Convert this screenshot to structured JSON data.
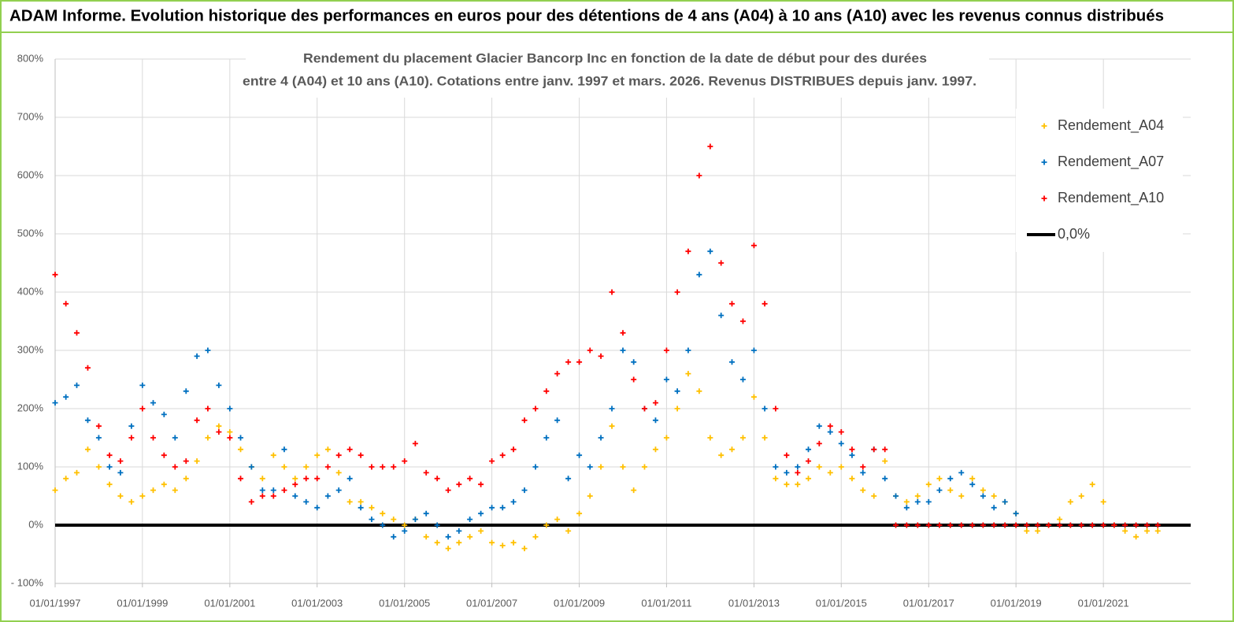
{
  "chart_data": {
    "type": "scatter",
    "header": "ADAM Informe. Evolution historique des performances en euros pour des détentions de 4 ans (A04) à 10 ans (A10) avec les revenus connus distribués",
    "title": [
      "Rendement du placement Glacier Bancorp Inc en fonction de la date de début pour des durées",
      "entre 4 (A04) et 10 ans (A10).  Cotations entre janv. 1997 et mars. 2026. Revenus DISTRIBUES depuis janv. 1997."
    ],
    "xlim": [
      "1997-01-01",
      "2023-01-01"
    ],
    "xticks": [
      {
        "value": "1997-01-01",
        "label": "01/01/1997"
      },
      {
        "value": "1999-01-01",
        "label": "01/01/1999"
      },
      {
        "value": "2001-01-01",
        "label": "01/01/2001"
      },
      {
        "value": "2003-01-01",
        "label": "01/01/2003"
      },
      {
        "value": "2005-01-01",
        "label": "01/01/2005"
      },
      {
        "value": "2007-01-01",
        "label": "01/01/2007"
      },
      {
        "value": "2009-01-01",
        "label": "01/01/2009"
      },
      {
        "value": "2011-01-01",
        "label": "01/01/2011"
      },
      {
        "value": "2013-01-01",
        "label": "01/01/2013"
      },
      {
        "value": "2015-01-01",
        "label": "01/01/2015"
      },
      {
        "value": "2017-01-01",
        "label": "01/01/2017"
      },
      {
        "value": "2019-01-01",
        "label": "01/01/2019"
      },
      {
        "value": "2021-01-01",
        "label": "01/01/2021"
      }
    ],
    "ylim": [
      -100,
      800
    ],
    "yticks": [
      {
        "value": -100,
        "label": "- 100%"
      },
      {
        "value": 0,
        "label": "0%"
      },
      {
        "value": 100,
        "label": "100%"
      },
      {
        "value": 200,
        "label": "200%"
      },
      {
        "value": 300,
        "label": "300%"
      },
      {
        "value": 400,
        "label": "400%"
      },
      {
        "value": 500,
        "label": "500%"
      },
      {
        "value": 600,
        "label": "600%"
      },
      {
        "value": 700,
        "label": "700%"
      },
      {
        "value": 800,
        "label": "800%"
      }
    ],
    "grid": true,
    "x": [
      "1997-01-01",
      "1997-04-01",
      "1997-07-01",
      "1997-10-01",
      "1998-01-01",
      "1998-04-01",
      "1998-07-01",
      "1998-10-01",
      "1999-01-01",
      "1999-04-01",
      "1999-07-01",
      "1999-10-01",
      "2000-01-01",
      "2000-04-01",
      "2000-07-01",
      "2000-10-01",
      "2001-01-01",
      "2001-04-01",
      "2001-07-01",
      "2001-10-01",
      "2002-01-01",
      "2002-04-01",
      "2002-07-01",
      "2002-10-01",
      "2003-01-01",
      "2003-04-01",
      "2003-07-01",
      "2003-10-01",
      "2004-01-01",
      "2004-04-01",
      "2004-07-01",
      "2004-10-01",
      "2005-01-01",
      "2005-04-01",
      "2005-07-01",
      "2005-10-01",
      "2006-01-01",
      "2006-04-01",
      "2006-07-01",
      "2006-10-01",
      "2007-01-01",
      "2007-04-01",
      "2007-07-01",
      "2007-10-01",
      "2008-01-01",
      "2008-04-01",
      "2008-07-01",
      "2008-10-01",
      "2009-01-01",
      "2009-04-01",
      "2009-07-01",
      "2009-10-01",
      "2010-01-01",
      "2010-04-01",
      "2010-07-01",
      "2010-10-01",
      "2011-01-01",
      "2011-04-01",
      "2011-07-01",
      "2011-10-01",
      "2012-01-01",
      "2012-04-01",
      "2012-07-01",
      "2012-10-01",
      "2013-01-01",
      "2013-04-01",
      "2013-07-01",
      "2013-10-01",
      "2014-01-01",
      "2014-04-01",
      "2014-07-01",
      "2014-10-01",
      "2015-01-01",
      "2015-04-01",
      "2015-07-01",
      "2015-10-01",
      "2016-01-01",
      "2016-04-01",
      "2016-07-01",
      "2016-10-01",
      "2017-01-01",
      "2017-04-01",
      "2017-07-01",
      "2017-10-01",
      "2018-01-01",
      "2018-04-01",
      "2018-07-01",
      "2018-10-01",
      "2019-01-01",
      "2019-04-01",
      "2019-07-01",
      "2019-10-01",
      "2020-01-01",
      "2020-04-01",
      "2020-07-01",
      "2020-10-01",
      "2021-01-01",
      "2021-04-01",
      "2021-07-01",
      "2021-10-01",
      "2022-01-01",
      "2022-04-01"
    ],
    "series": [
      {
        "name": "Rendement_A04",
        "color": "#ffc000",
        "values": [
          60,
          80,
          90,
          130,
          100,
          70,
          50,
          40,
          50,
          60,
          70,
          60,
          80,
          110,
          150,
          170,
          160,
          130,
          100,
          80,
          120,
          100,
          80,
          100,
          120,
          130,
          90,
          40,
          40,
          30,
          20,
          10,
          0,
          10,
          -20,
          -30,
          -40,
          -30,
          -20,
          -10,
          -30,
          -35,
          -30,
          -40,
          -20,
          0,
          10,
          -10,
          20,
          50,
          100,
          170,
          100,
          60,
          100,
          130,
          150,
          200,
          260,
          230,
          150,
          120,
          130,
          150,
          220,
          150,
          80,
          70,
          70,
          80,
          100,
          90,
          100,
          80,
          60,
          50,
          110,
          50,
          40,
          50,
          70,
          80,
          60,
          50,
          80,
          60,
          50,
          40,
          20,
          -10,
          -10,
          0,
          10,
          40,
          50,
          70,
          40,
          0,
          -10,
          -20,
          -10,
          -10
        ]
      },
      {
        "name": "Rendement_A07",
        "color": "#0070c0",
        "values": [
          210,
          220,
          240,
          180,
          150,
          100,
          90,
          170,
          240,
          210,
          190,
          150,
          230,
          290,
          300,
          240,
          200,
          150,
          100,
          60,
          60,
          130,
          50,
          40,
          30,
          50,
          60,
          80,
          30,
          10,
          0,
          -20,
          -10,
          10,
          20,
          0,
          -20,
          -10,
          10,
          20,
          30,
          30,
          40,
          60,
          100,
          150,
          180,
          80,
          120,
          100,
          150,
          200,
          300,
          280,
          200,
          180,
          250,
          230,
          300,
          430,
          470,
          360,
          280,
          250,
          300,
          200,
          100,
          90,
          100,
          130,
          170,
          160,
          140,
          120,
          90,
          130,
          80,
          50,
          30,
          40,
          40,
          60,
          80,
          90,
          70,
          50,
          30,
          40,
          20,
          null,
          null,
          null,
          null,
          null,
          null,
          null,
          null,
          null,
          null,
          null,
          null,
          null
        ]
      },
      {
        "name": "Rendement_A10",
        "color": "#ff0000",
        "values": [
          430,
          380,
          330,
          270,
          170,
          120,
          110,
          150,
          200,
          150,
          120,
          100,
          110,
          180,
          200,
          160,
          150,
          80,
          40,
          50,
          50,
          60,
          70,
          80,
          80,
          100,
          120,
          130,
          120,
          100,
          100,
          100,
          110,
          140,
          90,
          80,
          60,
          70,
          80,
          70,
          110,
          120,
          130,
          180,
          200,
          230,
          260,
          280,
          280,
          300,
          290,
          400,
          330,
          250,
          200,
          210,
          300,
          400,
          470,
          600,
          650,
          450,
          380,
          350,
          480,
          380,
          200,
          120,
          90,
          110,
          140,
          170,
          160,
          130,
          100,
          130,
          130,
          0,
          0,
          0,
          0,
          0,
          0,
          0,
          0,
          0,
          0,
          0,
          0,
          0,
          0,
          0,
          0,
          0,
          0,
          0,
          0,
          0,
          0,
          0,
          0,
          0
        ]
      },
      {
        "name": "0,0%",
        "type": "line",
        "color": "#000000",
        "x": [
          "1997-01-01",
          "2023-01-01"
        ],
        "values": [
          0,
          0
        ]
      }
    ]
  }
}
